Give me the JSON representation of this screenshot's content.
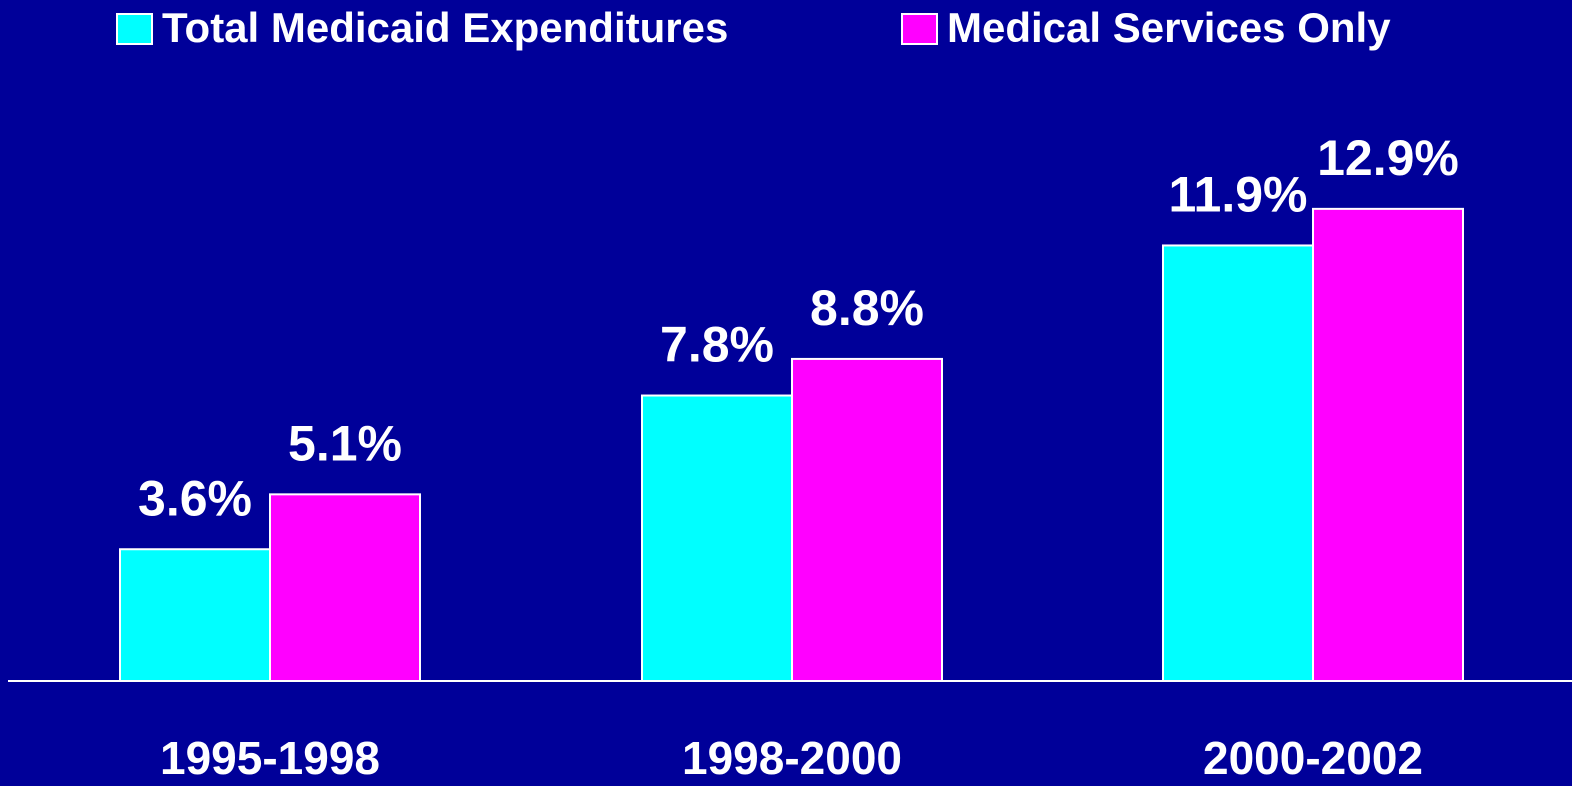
{
  "chart_data": {
    "type": "bar",
    "categories": [
      "1995-1998",
      "1998-2000",
      "2000-2002"
    ],
    "series": [
      {
        "name": "Total Medicaid Expenditures",
        "color": "#00ffff",
        "values": [
          3.6,
          7.8,
          11.9
        ],
        "value_labels": [
          "3.6%",
          "7.8%",
          "11.9%"
        ]
      },
      {
        "name": "Medical Services Only",
        "color": "#ff00ff",
        "values": [
          5.1,
          8.8,
          12.9
        ],
        "value_labels": [
          "5.1%",
          "8.8%",
          "12.9%"
        ]
      }
    ],
    "ylim": [
      0,
      15
    ],
    "background": "#000099"
  }
}
